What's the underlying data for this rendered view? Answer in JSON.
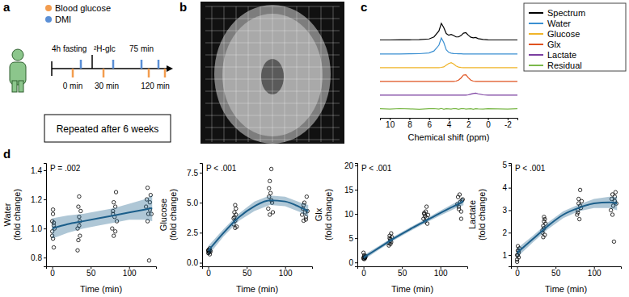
{
  "panel_labels": [
    "a",
    "b",
    "c",
    "d"
  ],
  "timeline": {
    "legend": [
      {
        "label": "Blood glucose",
        "color": "#f39c4e"
      },
      {
        "label": "DMI",
        "color": "#5a8fd6"
      }
    ],
    "events": [
      "4h fasting",
      "²H-glc"
    ],
    "timepoints": [
      "0 min",
      "30 min",
      "75 min",
      "120 min"
    ],
    "note": "Repeated after 6 weeks"
  },
  "chart_data": [
    {
      "type": "line",
      "x_label": "Chemical shift (ppm)",
      "xlim": [
        11,
        -3
      ],
      "xticks": [
        10,
        8,
        6,
        4,
        2,
        0,
        -2
      ],
      "ylim": [
        -0.1,
        1.05
      ],
      "tick_labels": "x",
      "legend": "right",
      "x": [
        11,
        10,
        9,
        8,
        7,
        6,
        5.5,
        5,
        4.75,
        4.5,
        4.25,
        4,
        3.75,
        3.5,
        3.25,
        3,
        2.75,
        2.5,
        2.25,
        2,
        1.75,
        1.5,
        1.25,
        1,
        0.5,
        0,
        -1,
        -2,
        -3
      ],
      "series": [
        {
          "name": "Spectrum",
          "color": "#000000",
          "values": [
            0.02,
            0.02,
            0.03,
            0.03,
            0.04,
            0.08,
            0.2,
            0.55,
            1.0,
            0.75,
            0.4,
            0.3,
            0.35,
            0.28,
            0.2,
            0.2,
            0.28,
            0.42,
            0.45,
            0.3,
            0.18,
            0.15,
            0.17,
            0.1,
            0.05,
            0.03,
            0.02,
            0.02,
            0.02
          ]
        },
        {
          "name": "Water",
          "color": "#3a8fd1",
          "values": [
            0,
            0,
            0,
            0.01,
            0.02,
            0.06,
            0.18,
            0.52,
            0.95,
            0.68,
            0.25,
            0.1,
            0.05,
            0.03,
            0.02,
            0.01,
            0.01,
            0,
            0,
            0,
            0,
            0,
            0,
            0,
            0,
            0,
            0,
            0,
            0
          ]
        },
        {
          "name": "Glucose",
          "color": "#f0b429",
          "values": [
            0,
            0,
            0,
            0,
            0,
            0,
            0,
            0,
            0.02,
            0.05,
            0.15,
            0.25,
            0.3,
            0.22,
            0.1,
            0.04,
            0.01,
            0,
            0,
            0,
            0,
            0,
            0,
            0,
            0,
            0,
            0,
            0,
            0
          ]
        },
        {
          "name": "Glx",
          "color": "#e0521f",
          "values": [
            0,
            0,
            0,
            0,
            0,
            0,
            0,
            0,
            0,
            0,
            0,
            0,
            0,
            0,
            0.02,
            0.08,
            0.2,
            0.38,
            0.4,
            0.22,
            0.08,
            0.02,
            0,
            0,
            0,
            0,
            0,
            0,
            0
          ]
        },
        {
          "name": "Lactate",
          "color": "#7b3fa0",
          "values": [
            0,
            0,
            0,
            0,
            0,
            0,
            0,
            0,
            0,
            0,
            0,
            0,
            0,
            0,
            0,
            0,
            0,
            0,
            0,
            0.02,
            0.06,
            0.1,
            0.12,
            0.08,
            0.02,
            0,
            0,
            0,
            0
          ]
        },
        {
          "name": "Residual",
          "color": "#7bb84a",
          "values": [
            0.01,
            -0.01,
            0.02,
            0,
            -0.02,
            0.01,
            0.02,
            -0.01,
            0.03,
            -0.02,
            0.01,
            0,
            -0.01,
            0.02,
            0.01,
            -0.02,
            0.01,
            0.02,
            -0.01,
            0,
            0.01,
            -0.02,
            0.01,
            0,
            -0.01,
            0.01,
            0,
            -0.01,
            0.01
          ]
        }
      ]
    },
    {
      "type": "scatter",
      "y_label": [
        "Water",
        "(fold change)"
      ],
      "x_label": "Time (min)",
      "annotation": "P = .002",
      "xlim": [
        -8,
        135
      ],
      "xticks": [
        0,
        50,
        100
      ],
      "ylim": [
        0.74,
        1.45
      ],
      "yticks": [
        0.8,
        {
          "value": 1,
          "label": "1.0"
        },
        1.2,
        1.4
      ],
      "series": [
        {
          "type": "scatter",
          "marker": "circle",
          "color": "#000000",
          "x": [
            0,
            0,
            1,
            1,
            2,
            2,
            3,
            0,
            1,
            2,
            33,
            34,
            34,
            35,
            35,
            36,
            36,
            37,
            33,
            35,
            78,
            79,
            80,
            80,
            81,
            82,
            83,
            84,
            79,
            82,
            122,
            123,
            124,
            125,
            126,
            127,
            128,
            129,
            124,
            127
          ],
          "values": [
            1.05,
            0.98,
            0.93,
            1.1,
            1.02,
            0.87,
            1.0,
            0.95,
            1.13,
            1.04,
            1.0,
            1.15,
            0.92,
            1.08,
            1.22,
            0.95,
            1.05,
            1.12,
            0.85,
            1.02,
            1.0,
            1.12,
            1.18,
            0.95,
            1.08,
            1.15,
            1.25,
            1.05,
            1.1,
            0.98,
            1.15,
            1.2,
            1.28,
            1.1,
            0.78,
            1.18,
            1.23,
            1.1,
            1.05,
            1.13
          ]
        },
        {
          "type": "line",
          "color": "#1b5e8a",
          "x": [
            0,
            20,
            40,
            60,
            80,
            100,
            120,
            130
          ],
          "values": [
            1.0,
            1.03,
            1.05,
            1.07,
            1.09,
            1.11,
            1.13,
            1.14
          ],
          "lower": [
            0.93,
            0.97,
            1.0,
            1.02,
            1.04,
            1.06,
            1.06,
            1.05
          ],
          "upper": [
            1.07,
            1.09,
            1.1,
            1.12,
            1.14,
            1.17,
            1.2,
            1.23
          ]
        }
      ]
    },
    {
      "type": "scatter",
      "y_label": [
        "Glucose",
        "(fold change)"
      ],
      "x_label": "Time (min)",
      "annotation": "P < .001",
      "xlim": [
        -8,
        135
      ],
      "xticks": [
        0,
        50,
        100
      ],
      "ylim": [
        -0.3,
        8.3
      ],
      "yticks": [
        {
          "value": 0,
          "label": "0.0"
        },
        2.5,
        {
          "value": 5,
          "label": "5.0"
        },
        7.5
      ],
      "series": [
        {
          "type": "scatter",
          "marker": "circle",
          "color": "#000000",
          "x": [
            0,
            0,
            1,
            1,
            2,
            2,
            3,
            0,
            1,
            2,
            33,
            34,
            34,
            35,
            35,
            36,
            36,
            37,
            33,
            35,
            78,
            79,
            80,
            80,
            81,
            82,
            83,
            84,
            79,
            82,
            122,
            123,
            124,
            125,
            126,
            127,
            128,
            129,
            124,
            127
          ],
          "values": [
            0.8,
            1.0,
            1.1,
            0.9,
            0.7,
            1.2,
            0.95,
            1.05,
            0.85,
            1.0,
            3.2,
            3.8,
            4.2,
            2.9,
            3.5,
            4.0,
            4.5,
            3.0,
            3.7,
            4.8,
            4.5,
            5.5,
            6.8,
            4.0,
            5.8,
            7.8,
            5.0,
            4.2,
            6.2,
            5.2,
            4.0,
            4.5,
            3.5,
            5.0,
            4.2,
            3.8,
            5.5,
            4.3,
            4.8,
            3.6
          ]
        },
        {
          "type": "line",
          "color": "#1b5e8a",
          "x": [
            0,
            20,
            40,
            60,
            80,
            100,
            120,
            130
          ],
          "values": [
            1.0,
            2.5,
            3.8,
            4.7,
            5.2,
            5.1,
            4.6,
            4.3
          ],
          "lower": [
            0.6,
            2.2,
            3.5,
            4.3,
            4.8,
            4.7,
            4.2,
            3.8
          ],
          "upper": [
            1.4,
            2.8,
            4.1,
            5.1,
            5.6,
            5.5,
            5.0,
            4.8
          ]
        }
      ]
    },
    {
      "type": "scatter",
      "y_label": [
        "Glx",
        "(fold change)"
      ],
      "x_label": "Time (min)",
      "annotation": "P < .001",
      "xlim": [
        -8,
        135
      ],
      "xticks": [
        0,
        50,
        100
      ],
      "ylim": [
        -0.8,
        20.5
      ],
      "yticks": [
        0,
        5,
        10,
        15,
        20
      ],
      "series": [
        {
          "type": "scatter",
          "marker": "circle",
          "color": "#000000",
          "x": [
            0,
            0,
            1,
            1,
            2,
            2,
            3,
            0,
            1,
            2,
            33,
            34,
            34,
            35,
            35,
            36,
            36,
            37,
            33,
            35,
            78,
            79,
            80,
            80,
            81,
            82,
            83,
            84,
            79,
            82,
            122,
            123,
            124,
            125,
            126,
            127,
            128,
            129,
            124,
            127
          ],
          "values": [
            1.0,
            0.8,
            1.2,
            1.5,
            0.9,
            1.1,
            1.3,
            2.0,
            0.7,
            1.0,
            4.0,
            5.0,
            5.5,
            3.8,
            4.5,
            6.0,
            4.2,
            5.2,
            3.5,
            4.8,
            9.0,
            10.0,
            9.5,
            8.5,
            10.5,
            11.5,
            8.0,
            9.8,
            10.2,
            9.2,
            12.0,
            13.5,
            11.0,
            14.0,
            12.5,
            9.0,
            12.8,
            13.0,
            11.5,
            10.5
          ]
        },
        {
          "type": "line",
          "color": "#1b5e8a",
          "x": [
            0,
            20,
            40,
            60,
            80,
            100,
            120,
            130
          ],
          "values": [
            1.0,
            3.0,
            5.0,
            6.8,
            8.5,
            10.2,
            11.8,
            12.6
          ],
          "lower": [
            0.5,
            2.6,
            4.6,
            6.4,
            8.1,
            9.7,
            11.2,
            11.8
          ],
          "upper": [
            1.5,
            3.4,
            5.4,
            7.2,
            8.9,
            10.7,
            12.4,
            13.4
          ]
        }
      ]
    },
    {
      "type": "scatter",
      "y_label": [
        "Lactate",
        "(fold change)"
      ],
      "x_label": "Time (min)",
      "annotation": "P < .001",
      "xlim": [
        -8,
        135
      ],
      "xticks": [
        0,
        50,
        100
      ],
      "ylim": [
        0.5,
        5.1
      ],
      "yticks": [
        1,
        2,
        3,
        4,
        5
      ],
      "series": [
        {
          "type": "scatter",
          "marker": "circle",
          "color": "#000000",
          "x": [
            0,
            0,
            1,
            1,
            2,
            2,
            3,
            0,
            1,
            2,
            33,
            34,
            34,
            35,
            35,
            36,
            36,
            37,
            33,
            35,
            78,
            79,
            80,
            80,
            81,
            82,
            83,
            84,
            79,
            82,
            122,
            123,
            124,
            125,
            126,
            127,
            128,
            129,
            124,
            127
          ],
          "values": [
            0.8,
            1.0,
            1.2,
            1.4,
            0.9,
            1.1,
            1.3,
            0.7,
            1.0,
            1.2,
            2.0,
            2.3,
            1.8,
            2.5,
            2.2,
            2.6,
            1.9,
            2.4,
            2.1,
            2.7,
            2.8,
            3.0,
            3.3,
            3.5,
            2.6,
            3.9,
            3.1,
            3.4,
            2.9,
            3.2,
            3.0,
            3.5,
            3.7,
            3.2,
            1.6,
            3.4,
            3.8,
            3.3,
            2.8,
            3.6
          ]
        },
        {
          "type": "line",
          "color": "#1b5e8a",
          "x": [
            0,
            20,
            40,
            60,
            80,
            100,
            120,
            130
          ],
          "values": [
            1.1,
            1.7,
            2.3,
            2.8,
            3.1,
            3.3,
            3.35,
            3.3
          ],
          "lower": [
            0.9,
            1.55,
            2.15,
            2.65,
            2.95,
            3.1,
            3.1,
            3.0
          ],
          "upper": [
            1.3,
            1.85,
            2.45,
            2.95,
            3.25,
            3.5,
            3.6,
            3.6
          ]
        }
      ]
    }
  ]
}
